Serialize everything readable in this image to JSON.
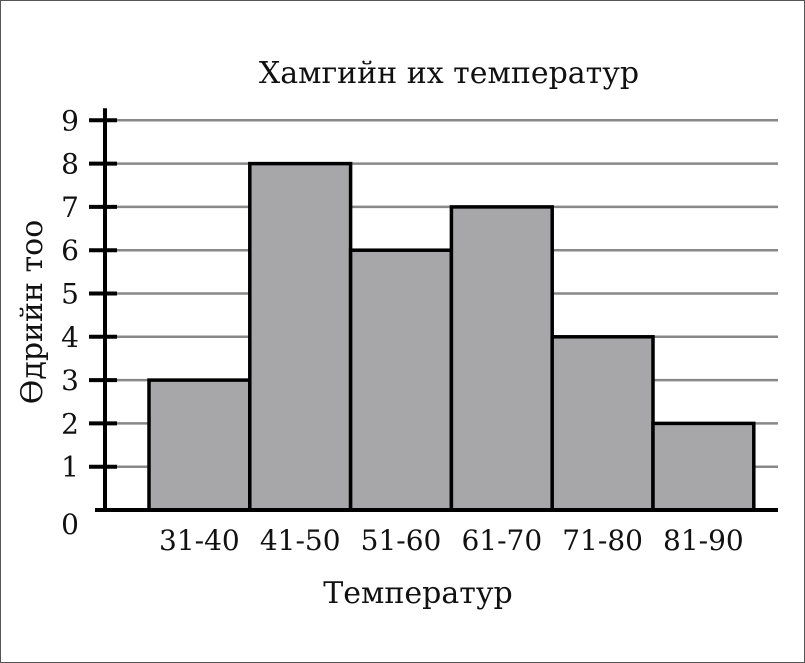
{
  "chart_data": {
    "type": "bar",
    "title": "Хамгийн их температур",
    "xlabel": "Температур",
    "ylabel": "Өдрийн тоо",
    "categories": [
      "31-40",
      "41-50",
      "51-60",
      "61-70",
      "71-80",
      "81-90"
    ],
    "values": [
      3,
      8,
      6,
      7,
      4,
      2
    ],
    "ylim": [
      0,
      9
    ],
    "yticks": [
      "0",
      "1",
      "2",
      "3",
      "4",
      "5",
      "6",
      "7",
      "8",
      "9"
    ],
    "grid": true,
    "bar_color": "#a7a7aa",
    "bar_edge_color": "#000000",
    "grid_color": "#888888"
  }
}
